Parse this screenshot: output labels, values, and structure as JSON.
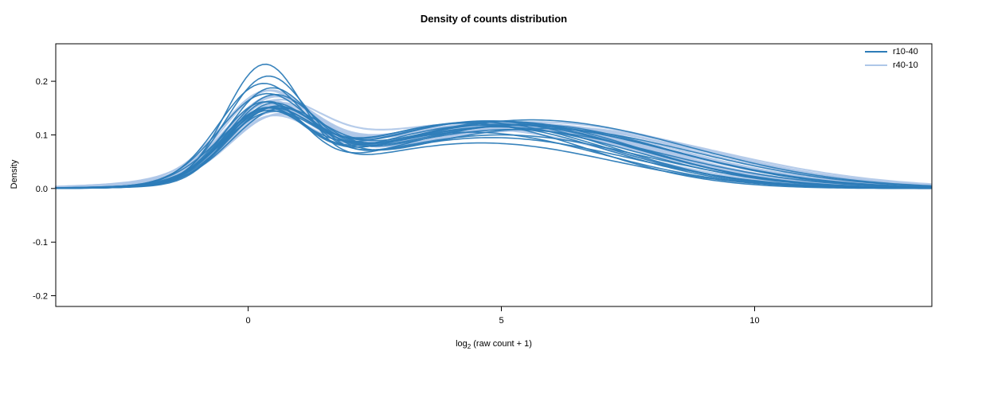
{
  "chart_data": {
    "type": "line",
    "title": "Density of counts distribution",
    "ylabel": "Density",
    "xlabel": {
      "base": "log",
      "sub": "2",
      "rest": " (raw count + 1)"
    },
    "xlim": [
      -3.8,
      13.5
    ],
    "ylim": [
      -0.22,
      0.27
    ],
    "xticks": [
      0,
      5,
      10
    ],
    "yticks": [
      -0.2,
      -0.1,
      0.0,
      0.1,
      0.2
    ],
    "ytick_labels": [
      "-0.2",
      "-0.1",
      "0.0",
      "0.1",
      "0.2"
    ],
    "grid": false,
    "legend_position": "top-right",
    "curve_model": "y(x) = h1*exp(-(x-m1)^2/(2*s1^2)) + h2*exp(-(x-m2)^2/(2*s2^2)); params per curve: [h1,m1,s1,h2,m2,s2]",
    "description": "Bimodal density curves per sample: sharp peak near log2(count+1)=0.3 (heights ~0.10-0.235) and broad hump near 4-6 (heights ~0.10-0.13), tails reaching ~13.5",
    "series": [
      {
        "name": "r10-40",
        "color": "#2d7cb8",
        "line_width": 1.6,
        "opacity": 0.95,
        "curves": [
          [
            0.21,
            0.3,
            0.75,
            0.085,
            4.6,
            2.6
          ],
          [
            0.185,
            0.35,
            0.8,
            0.095,
            4.8,
            2.7
          ],
          [
            0.172,
            0.25,
            0.85,
            0.1,
            5.0,
            2.8
          ],
          [
            0.155,
            0.4,
            0.8,
            0.105,
            4.4,
            2.6
          ],
          [
            0.15,
            0.3,
            0.9,
            0.11,
            5.2,
            2.9
          ],
          [
            0.145,
            0.45,
            0.85,
            0.115,
            4.9,
            2.7
          ],
          [
            0.14,
            0.35,
            0.75,
            0.12,
            5.5,
            2.8
          ],
          [
            0.135,
            0.25,
            0.8,
            0.118,
            4.6,
            2.5
          ],
          [
            0.13,
            0.5,
            0.9,
            0.112,
            5.8,
            3.0
          ],
          [
            0.128,
            0.3,
            0.85,
            0.125,
            5.1,
            2.6
          ],
          [
            0.126,
            0.4,
            0.8,
            0.122,
            4.3,
            2.4
          ],
          [
            0.124,
            0.35,
            0.95,
            0.118,
            5.4,
            2.9
          ],
          [
            0.122,
            0.45,
            0.85,
            0.126,
            4.7,
            2.5
          ],
          [
            0.12,
            0.3,
            0.8,
            0.128,
            5.6,
            3.1
          ],
          [
            0.118,
            0.55,
            0.9,
            0.12,
            5.0,
            2.7
          ],
          [
            0.115,
            0.35,
            0.85,
            0.124,
            4.5,
            2.6
          ],
          [
            0.112,
            0.4,
            0.9,
            0.118,
            5.3,
            3.0
          ],
          [
            0.11,
            0.3,
            0.8,
            0.126,
            4.8,
            2.8
          ]
        ]
      },
      {
        "name": "r40-10",
        "color": "#aec7e8",
        "line_width": 2.2,
        "opacity": 0.9,
        "curves": [
          [
            0.1,
            0.45,
            0.95,
            0.118,
            5.0,
            3.2
          ],
          [
            0.105,
            0.5,
            0.9,
            0.122,
            5.4,
            3.0
          ],
          [
            0.11,
            0.4,
            0.85,
            0.126,
            4.8,
            2.9
          ],
          [
            0.115,
            0.55,
            0.95,
            0.12,
            5.6,
            3.1
          ],
          [
            0.12,
            0.35,
            0.9,
            0.124,
            5.2,
            2.8
          ],
          [
            0.125,
            0.45,
            0.85,
            0.118,
            4.6,
            3.0
          ],
          [
            0.13,
            0.5,
            0.9,
            0.115,
            5.8,
            3.2
          ],
          [
            0.135,
            0.4,
            0.8,
            0.12,
            5.0,
            2.7
          ],
          [
            0.14,
            0.35,
            0.85,
            0.112,
            4.4,
            2.9
          ],
          [
            0.145,
            0.45,
            0.9,
            0.108,
            5.5,
            3.1
          ],
          [
            0.138,
            0.3,
            0.85,
            0.116,
            4.9,
            3.3
          ],
          [
            0.132,
            0.55,
            0.95,
            0.114,
            5.3,
            2.8
          ],
          [
            0.128,
            0.4,
            0.9,
            0.12,
            4.7,
            3.0
          ],
          [
            0.122,
            0.5,
            0.85,
            0.124,
            5.7,
            3.2
          ],
          [
            0.118,
            0.35,
            0.9,
            0.118,
            5.1,
            2.9
          ],
          [
            0.112,
            0.45,
            0.95,
            0.122,
            4.5,
            3.1
          ],
          [
            0.108,
            0.55,
            0.9,
            0.116,
            5.9,
            3.3
          ],
          [
            0.102,
            0.4,
            0.85,
            0.12,
            5.2,
            3.0
          ]
        ]
      }
    ]
  }
}
